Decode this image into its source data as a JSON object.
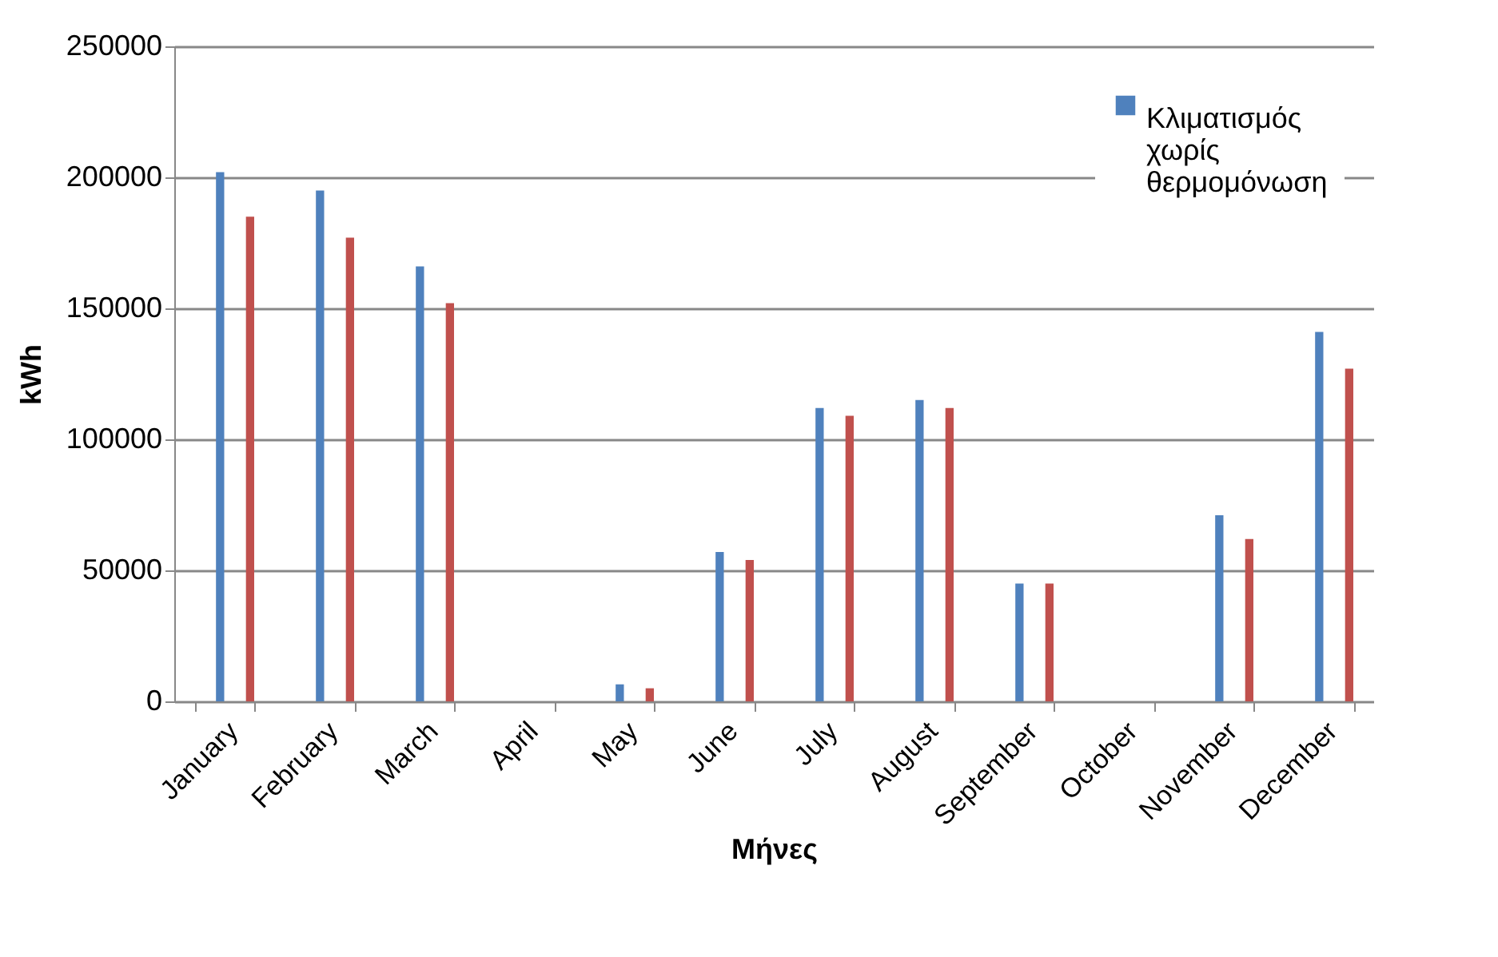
{
  "chart_data": {
    "type": "bar",
    "xlabel": "Μήνες",
    "ylabel": "kWh",
    "categories": [
      "January",
      "February",
      "March",
      "April",
      "May",
      "June",
      "July",
      "August",
      "September",
      "October",
      "November",
      "December"
    ],
    "series": [
      {
        "name": "Κλιματισμός χωρίς θερμομόνωση",
        "color": "#4f81bd",
        "values": [
          202000,
          195000,
          166000,
          0,
          6500,
          57000,
          112000,
          115000,
          45000,
          0,
          71000,
          141000
        ]
      },
      {
        "color": "#c0504d",
        "values": [
          185000,
          177000,
          152000,
          0,
          5000,
          54000,
          109000,
          112000,
          45000,
          0,
          62000,
          127000
        ]
      }
    ],
    "ylim": [
      0,
      250000
    ],
    "yticks": [
      0,
      50000,
      100000,
      150000,
      200000,
      250000
    ],
    "grid": "y",
    "legend": "top right"
  }
}
